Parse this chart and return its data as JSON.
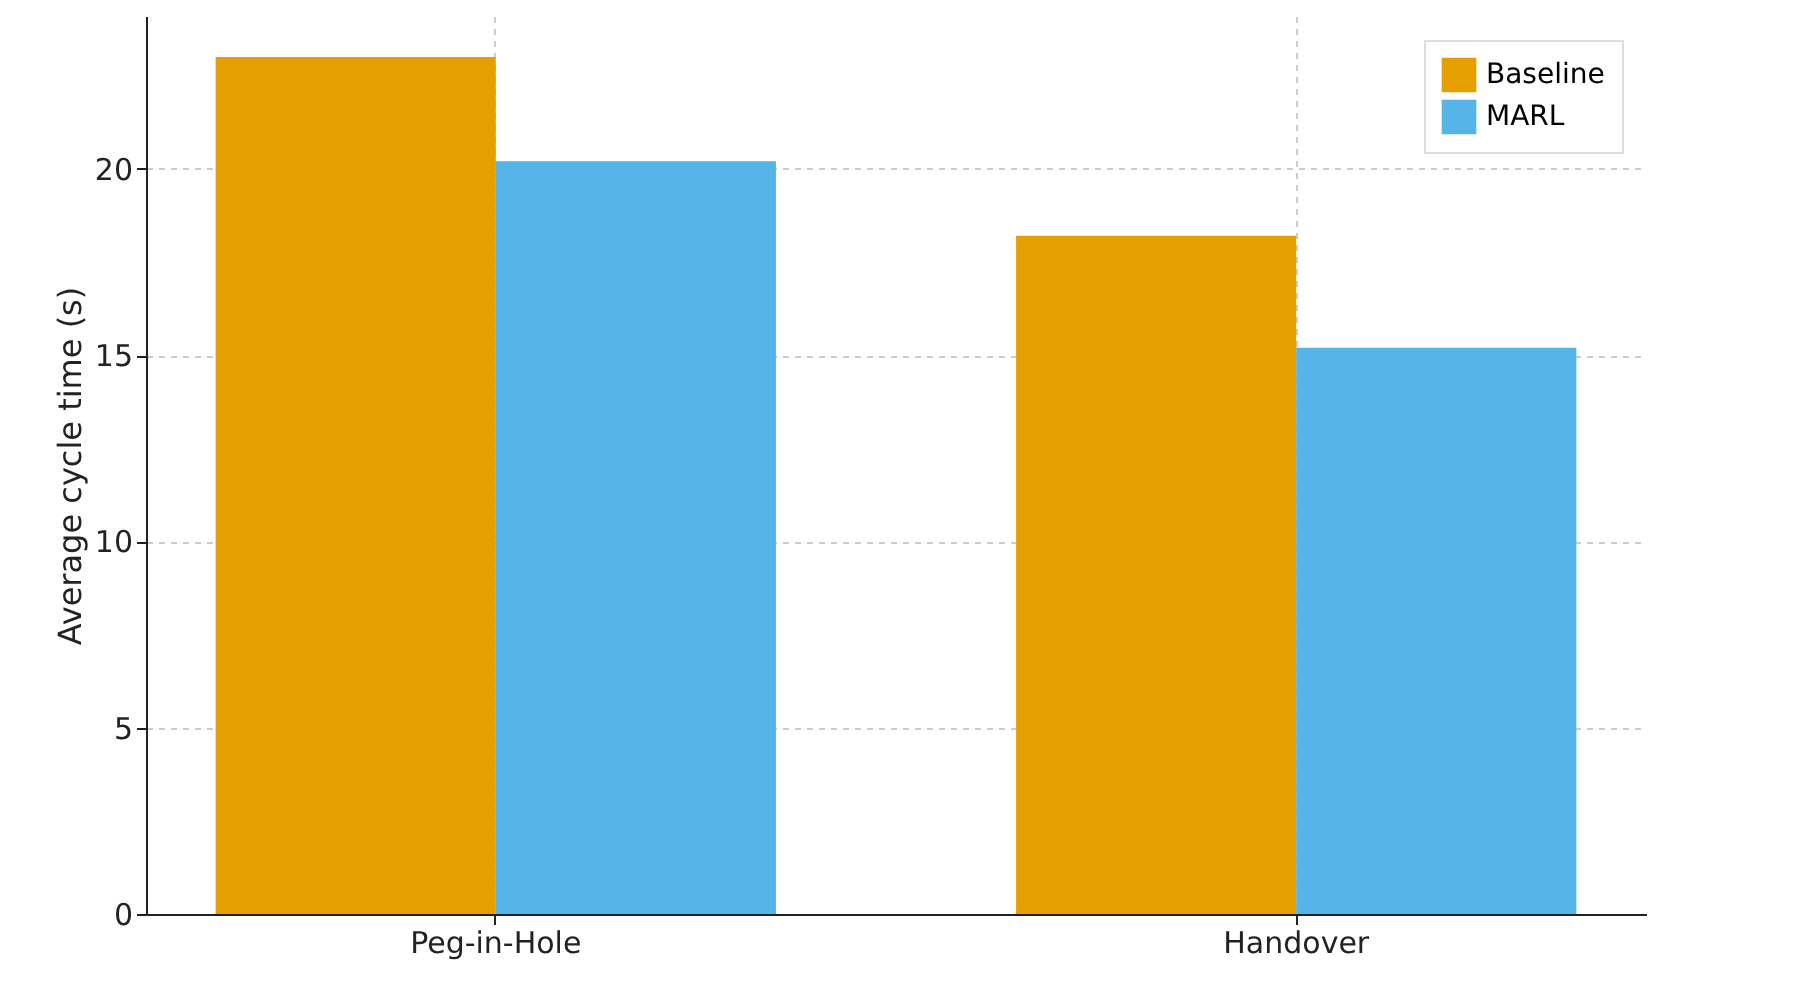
{
  "chart_data": {
    "type": "bar",
    "ylabel": "Average cycle time (s)",
    "categories": [
      "Peg-in-Hole",
      "Handover"
    ],
    "series": [
      {
        "name": "Baseline",
        "color": "#e69f00",
        "values": [
          23.0,
          18.2
        ]
      },
      {
        "name": "MARL",
        "color": "#56b4e9",
        "values": [
          20.2,
          15.2
        ]
      }
    ],
    "ylim": [
      0,
      24.1
    ],
    "yticks": [
      0,
      5,
      10,
      15,
      20
    ],
    "grid": true,
    "legend": "top right"
  }
}
